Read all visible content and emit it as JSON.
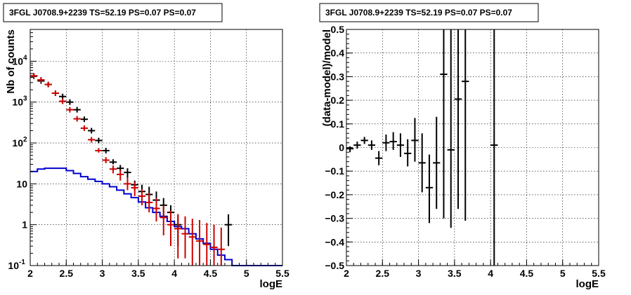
{
  "chart_data": [
    {
      "type": "scatter",
      "title": "3FGL J0708.9+2239 TS=52.19 PS=0.07 PS=0.07",
      "xlabel": "logE",
      "ylabel": "Nb of counts",
      "xlim": [
        2,
        5.5
      ],
      "ylim": [
        0.1,
        60000
      ],
      "yscale": "log",
      "grid": true,
      "xticks": [
        "2",
        "2.5",
        "3",
        "3.5",
        "4",
        "4.5",
        "5",
        "5.5"
      ],
      "yticks": [
        {
          "v": 0.1,
          "label": "10",
          "sup": "-1"
        },
        {
          "v": 1,
          "label": "1",
          "sup": ""
        },
        {
          "v": 10,
          "label": "10",
          "sup": ""
        },
        {
          "v": 100,
          "label": "10",
          "sup": "2"
        },
        {
          "v": 1000,
          "label": "10",
          "sup": "3"
        },
        {
          "v": 10000,
          "label": "10",
          "sup": "4"
        }
      ],
      "series": [
        {
          "color": "#000000",
          "style": "errorbar",
          "x": [
            2.05,
            2.15,
            2.25,
            2.35,
            2.45,
            2.55,
            2.65,
            2.75,
            2.85,
            2.95,
            3.05,
            3.15,
            3.25,
            3.35,
            3.45,
            3.55,
            3.65,
            3.75,
            3.85,
            3.95,
            4.05,
            4.15,
            4.25,
            4.35,
            4.45,
            4.55,
            4.65,
            4.75
          ],
          "y": [
            4300,
            3300,
            2700,
            1650,
            1370,
            1000,
            650,
            380,
            200,
            115,
            65,
            34,
            24,
            19,
            9.5,
            6.5,
            5.5,
            4,
            3,
            2,
            1,
            0,
            0,
            0,
            0,
            0,
            0,
            1
          ],
          "ylo": [
            null,
            null,
            null,
            null,
            null,
            null,
            null,
            null,
            null,
            null,
            null,
            30,
            20,
            14,
            7,
            4.5,
            3.5,
            2.4,
            1.5,
            0.8,
            0.3,
            null,
            null,
            null,
            null,
            null,
            null,
            0.3
          ],
          "yhi": [
            null,
            null,
            null,
            null,
            null,
            null,
            null,
            null,
            null,
            null,
            null,
            40,
            29,
            24,
            12,
            9.5,
            8.5,
            6.5,
            4.5,
            3,
            1.8,
            null,
            null,
            null,
            null,
            null,
            null,
            1.8
          ]
        },
        {
          "color": "#cc0000",
          "style": "errorbar",
          "x": [
            2.05,
            2.15,
            2.25,
            2.35,
            2.45,
            2.55,
            2.65,
            2.75,
            2.85,
            2.95,
            3.05,
            3.15,
            3.25,
            3.35,
            3.45,
            3.55,
            3.65,
            3.75,
            3.85,
            3.95,
            4.05,
            4.15,
            4.25,
            4.35,
            4.45,
            4.55,
            4.65
          ],
          "y": [
            4400,
            3500,
            2700,
            1650,
            1050,
            650,
            390,
            230,
            120,
            65,
            38,
            23,
            17,
            10,
            8,
            5,
            3.5,
            2.5,
            1.5,
            1,
            0.8,
            0.6,
            0.5,
            0.4,
            0.33,
            0.28,
            0.25
          ],
          "ylo": [
            null,
            null,
            null,
            null,
            null,
            null,
            null,
            null,
            null,
            58,
            32,
            18,
            12,
            7,
            5,
            3,
            2,
            1.2,
            0.55,
            0.3,
            0.15,
            0.15,
            0.1,
            0.1,
            0.1,
            0.1,
            0.1
          ],
          "yhi": [
            null,
            null,
            null,
            null,
            null,
            null,
            null,
            null,
            null,
            75,
            45,
            28,
            22,
            14,
            11,
            7.5,
            6,
            4.5,
            3,
            2.2,
            1.8,
            1.6,
            1.4,
            1.3,
            1.1,
            1,
            0.85
          ]
        },
        {
          "color": "#0000cc",
          "style": "step",
          "edges": [
            2.0,
            2.1,
            2.2,
            2.3,
            2.4,
            2.5,
            2.6,
            2.7,
            2.8,
            2.9,
            3.0,
            3.1,
            3.2,
            3.3,
            3.4,
            3.5,
            3.6,
            3.7,
            3.8,
            3.9,
            4.0,
            4.1,
            4.2,
            4.3,
            4.4,
            4.5,
            4.6,
            4.7,
            4.8,
            4.9,
            5.0,
            5.1,
            5.2,
            5.3,
            5.4,
            5.5
          ],
          "values": [
            20,
            23,
            24,
            24,
            24,
            21,
            18,
            15,
            13,
            11.5,
            10,
            8.5,
            7,
            5.7,
            4.6,
            3.6,
            2.6,
            2,
            1.6,
            1.2,
            0.9,
            0.8,
            0.6,
            0.45,
            0.35,
            0.25,
            0.18,
            0.14,
            0.1,
            0.1,
            0.1,
            0.1,
            0.1,
            0.1,
            0.1
          ]
        }
      ]
    },
    {
      "type": "scatter",
      "title": "3FGL J0708.9+2239 TS=52.19 PS=0.07 PS=0.07",
      "xlabel": "logE",
      "ylabel": "(data-model)/model",
      "xlim": [
        2,
        5.5
      ],
      "ylim": [
        -0.5,
        0.5
      ],
      "grid": true,
      "xticks": [
        "2",
        "2.5",
        "3",
        "3.5",
        "4",
        "4.5",
        "5",
        "5.5"
      ],
      "yticks": [
        "-0.5",
        "-0.4",
        "-0.3",
        "-0.2",
        "-0.1",
        "0",
        "0.1",
        "0.2",
        "0.3",
        "0.4",
        "0.5"
      ],
      "series": [
        {
          "color": "#000000",
          "style": "errorbar",
          "x": [
            2.05,
            2.15,
            2.25,
            2.35,
            2.45,
            2.55,
            2.65,
            2.75,
            2.85,
            2.95,
            3.05,
            3.15,
            3.25,
            3.35,
            3.45,
            3.55,
            3.65,
            4.05
          ],
          "y": [
            -0.005,
            0.01,
            0.03,
            0.01,
            -0.045,
            0.02,
            0.025,
            0.01,
            -0.025,
            0.03,
            -0.065,
            -0.17,
            -0.065,
            0.31,
            -0.01,
            0.205,
            0.28,
            0.01
          ],
          "ylo": [
            -0.02,
            -0.005,
            0.015,
            -0.01,
            -0.075,
            -0.015,
            -0.01,
            -0.04,
            -0.08,
            -0.06,
            -0.19,
            -0.32,
            -0.26,
            -0.3,
            -0.34,
            -0.26,
            -0.31,
            -0.5
          ],
          "yhi": [
            0.005,
            0.025,
            0.045,
            0.03,
            -0.015,
            0.055,
            0.065,
            0.06,
            0.035,
            0.125,
            0.06,
            -0.03,
            0.13,
            0.5,
            0.5,
            0.5,
            0.5,
            0.5
          ]
        }
      ]
    }
  ]
}
